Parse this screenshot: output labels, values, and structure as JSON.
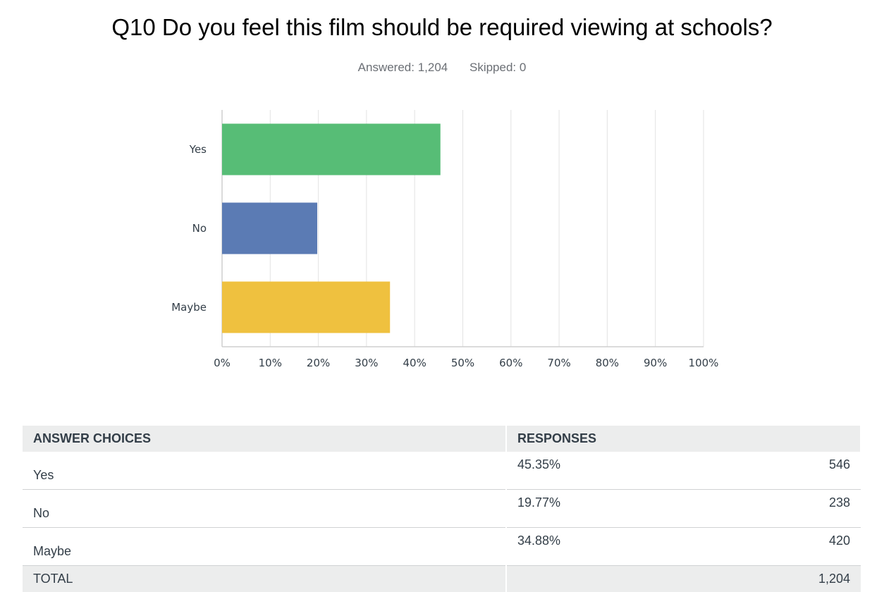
{
  "question": {
    "title": "Q10 Do you feel this film should be required viewing at schools?",
    "answered": "Answered: 1,204",
    "skipped": "Skipped: 0"
  },
  "chart_data": {
    "type": "bar",
    "orientation": "horizontal",
    "categories": [
      "Yes",
      "No",
      "Maybe"
    ],
    "values": [
      45.35,
      19.77,
      34.88
    ],
    "colors": [
      "#57bd76",
      "#5b7bb4",
      "#efc13f"
    ],
    "xlim": [
      0,
      100
    ],
    "xticks": [
      "0%",
      "10%",
      "20%",
      "30%",
      "40%",
      "50%",
      "60%",
      "70%",
      "80%",
      "90%",
      "100%"
    ],
    "grid": true
  },
  "table": {
    "headers": {
      "choices": "ANSWER CHOICES",
      "responses": "RESPONSES"
    },
    "rows": [
      {
        "choice": "Yes",
        "percent": "45.35%",
        "count": "546"
      },
      {
        "choice": "No",
        "percent": "19.77%",
        "count": "238"
      },
      {
        "choice": "Maybe",
        "percent": "34.88%",
        "count": "420"
      }
    ],
    "total": {
      "label": "TOTAL",
      "count": "1,204"
    }
  }
}
